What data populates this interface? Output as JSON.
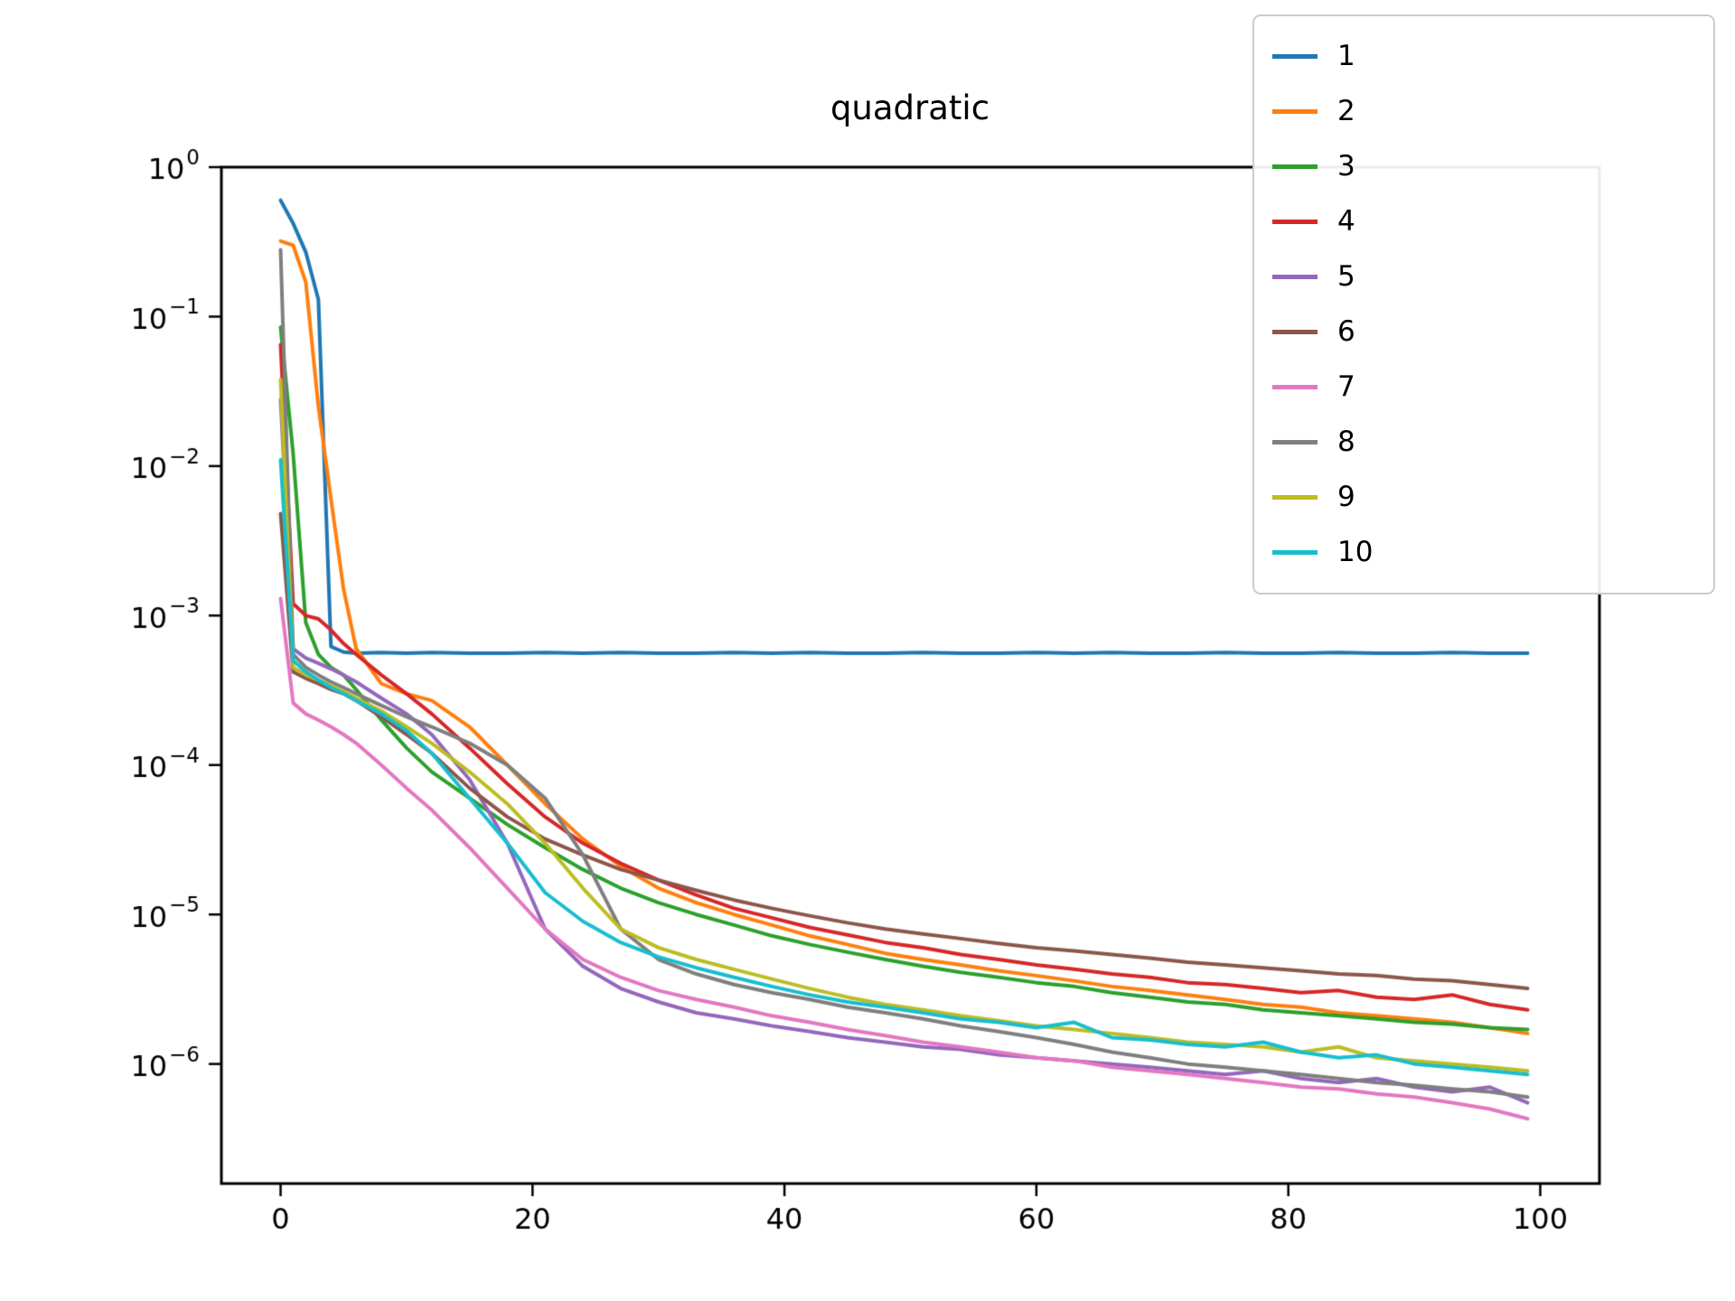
{
  "title": "quadratic",
  "legend": {
    "position": "upper right"
  },
  "chart_data": {
    "type": "line",
    "title": "quadratic",
    "xlabel": "",
    "ylabel": "",
    "yscale": "log",
    "grid": false,
    "xlim": [
      -4.7,
      104.7
    ],
    "ylim_log10": [
      -6.8,
      0
    ],
    "x_ticks": [
      0,
      20,
      40,
      60,
      80,
      100
    ],
    "y_tick_labels": [
      "10^0",
      "10^-1",
      "10^-2",
      "10^-3",
      "10^-4",
      "10^-5",
      "10^-6"
    ],
    "x": [
      0,
      1,
      2,
      3,
      4,
      5,
      6,
      8,
      10,
      12,
      15,
      18,
      21,
      24,
      27,
      30,
      33,
      36,
      39,
      42,
      45,
      48,
      51,
      54,
      57,
      60,
      63,
      66,
      69,
      72,
      75,
      78,
      81,
      84,
      87,
      90,
      93,
      96,
      99
    ],
    "series": [
      {
        "name": "1",
        "color": "#1f77b4",
        "values": [
          0.6,
          0.42,
          0.27,
          0.13,
          0.00062,
          0.00057,
          0.00056,
          0.000565,
          0.00056,
          0.000565,
          0.00056,
          0.00056,
          0.000565,
          0.00056,
          0.000565,
          0.00056,
          0.00056,
          0.000565,
          0.00056,
          0.000565,
          0.00056,
          0.00056,
          0.000565,
          0.00056,
          0.00056,
          0.000565,
          0.00056,
          0.000565,
          0.00056,
          0.00056,
          0.000565,
          0.00056,
          0.00056,
          0.000565,
          0.00056,
          0.00056,
          0.000565,
          0.00056,
          0.00056
        ]
      },
      {
        "name": "2",
        "color": "#ff7f0e",
        "values": [
          0.32,
          0.3,
          0.17,
          0.025,
          0.006,
          0.0015,
          0.0006,
          0.00035,
          0.0003,
          0.00027,
          0.00018,
          0.0001,
          5.5e-05,
          3.2e-05,
          2.1e-05,
          1.5e-05,
          1.2e-05,
          1e-05,
          8.5e-06,
          7.2e-06,
          6.3e-06,
          5.5e-06,
          5e-06,
          4.6e-06,
          4.2e-06,
          3.9e-06,
          3.6e-06,
          3.3e-06,
          3.1e-06,
          2.9e-06,
          2.7e-06,
          2.5e-06,
          2.4e-06,
          2.2e-06,
          2.1e-06,
          2e-06,
          1.9e-06,
          1.75e-06,
          1.6e-06
        ]
      },
      {
        "name": "3",
        "color": "#2ca02c",
        "values": [
          0.085,
          0.012,
          0.0009,
          0.00055,
          0.00045,
          0.0004,
          0.00032,
          0.0002,
          0.00013,
          9e-05,
          6e-05,
          4e-05,
          2.8e-05,
          2e-05,
          1.5e-05,
          1.2e-05,
          1e-05,
          8.5e-06,
          7.2e-06,
          6.3e-06,
          5.6e-06,
          5e-06,
          4.5e-06,
          4.1e-06,
          3.8e-06,
          3.5e-06,
          3.3e-06,
          3e-06,
          2.8e-06,
          2.6e-06,
          2.5e-06,
          2.3e-06,
          2.2e-06,
          2.1e-06,
          2e-06,
          1.9e-06,
          1.85e-06,
          1.75e-06,
          1.7e-06
        ]
      },
      {
        "name": "4",
        "color": "#d62728",
        "values": [
          0.065,
          0.0012,
          0.001,
          0.00095,
          0.0008,
          0.00065,
          0.00055,
          0.0004,
          0.0003,
          0.00022,
          0.00013,
          7.5e-05,
          4.5e-05,
          3e-05,
          2.2e-05,
          1.7e-05,
          1.35e-05,
          1.1e-05,
          9.5e-06,
          8.2e-06,
          7.3e-06,
          6.5e-06,
          6e-06,
          5.4e-06,
          5e-06,
          4.6e-06,
          4.3e-06,
          4e-06,
          3.8e-06,
          3.5e-06,
          3.4e-06,
          3.2e-06,
          3e-06,
          3.1e-06,
          2.8e-06,
          2.7e-06,
          2.9e-06,
          2.5e-06,
          2.3e-06
        ]
      },
      {
        "name": "5",
        "color": "#9467bd",
        "values": [
          0.028,
          0.0006,
          0.00052,
          0.00048,
          0.00044,
          0.0004,
          0.00036,
          0.00028,
          0.00022,
          0.00016,
          8e-05,
          3e-05,
          8e-06,
          4.5e-06,
          3.2e-06,
          2.6e-06,
          2.2e-06,
          2e-06,
          1.8e-06,
          1.65e-06,
          1.5e-06,
          1.4e-06,
          1.3e-06,
          1.25e-06,
          1.15e-06,
          1.1e-06,
          1.05e-06,
          1e-06,
          9.5e-07,
          9e-07,
          8.5e-07,
          9e-07,
          8e-07,
          7.5e-07,
          8e-07,
          7e-07,
          6.5e-07,
          7e-07,
          5.5e-07
        ]
      },
      {
        "name": "6",
        "color": "#8c564b",
        "values": [
          0.0048,
          0.00042,
          0.00038,
          0.00035,
          0.00032,
          0.0003,
          0.00027,
          0.00021,
          0.00016,
          0.00012,
          7e-05,
          4.5e-05,
          3.2e-05,
          2.5e-05,
          2e-05,
          1.7e-05,
          1.45e-05,
          1.25e-05,
          1.1e-05,
          9.8e-06,
          8.8e-06,
          8e-06,
          7.4e-06,
          6.9e-06,
          6.4e-06,
          6e-06,
          5.7e-06,
          5.4e-06,
          5.1e-06,
          4.8e-06,
          4.6e-06,
          4.4e-06,
          4.2e-06,
          4e-06,
          3.9e-06,
          3.7e-06,
          3.6e-06,
          3.4e-06,
          3.2e-06
        ]
      },
      {
        "name": "7",
        "color": "#e377c2",
        "values": [
          0.0013,
          0.00026,
          0.00022,
          0.0002,
          0.00018,
          0.00016,
          0.00014,
          0.0001,
          7e-05,
          5e-05,
          2.8e-05,
          1.5e-05,
          8e-06,
          5e-06,
          3.8e-06,
          3.1e-06,
          2.7e-06,
          2.4e-06,
          2.1e-06,
          1.9e-06,
          1.7e-06,
          1.55e-06,
          1.4e-06,
          1.3e-06,
          1.2e-06,
          1.1e-06,
          1.05e-06,
          9.5e-07,
          9e-07,
          8.5e-07,
          8e-07,
          7.5e-07,
          7e-07,
          6.8e-07,
          6.3e-07,
          6e-07,
          5.5e-07,
          5e-07,
          4.3e-07
        ]
      },
      {
        "name": "8",
        "color": "#7f7f7f",
        "values": [
          0.28,
          0.00055,
          0.00045,
          0.0004,
          0.00036,
          0.00033,
          0.0003,
          0.00025,
          0.00021,
          0.00018,
          0.00014,
          0.0001,
          6e-05,
          2.5e-05,
          8e-06,
          5e-06,
          4e-06,
          3.4e-06,
          3e-06,
          2.7e-06,
          2.4e-06,
          2.2e-06,
          2e-06,
          1.8e-06,
          1.65e-06,
          1.5e-06,
          1.35e-06,
          1.2e-06,
          1.1e-06,
          1e-06,
          9.5e-07,
          9e-07,
          8.5e-07,
          8e-07,
          7.5e-07,
          7.2e-07,
          6.8e-07,
          6.5e-07,
          6e-07
        ]
      },
      {
        "name": "9",
        "color": "#bcbd22",
        "values": [
          0.038,
          0.00045,
          0.0004,
          0.00037,
          0.00034,
          0.00031,
          0.00028,
          0.00023,
          0.00018,
          0.00014,
          9e-05,
          5.5e-05,
          3e-05,
          1.5e-05,
          8e-06,
          6e-06,
          5e-06,
          4.3e-06,
          3.7e-06,
          3.2e-06,
          2.8e-06,
          2.5e-06,
          2.3e-06,
          2.1e-06,
          1.95e-06,
          1.8e-06,
          1.7e-06,
          1.6e-06,
          1.5e-06,
          1.4e-06,
          1.35e-06,
          1.3e-06,
          1.2e-06,
          1.3e-06,
          1.1e-06,
          1.05e-06,
          1e-06,
          9.5e-07,
          9e-07
        ]
      },
      {
        "name": "10",
        "color": "#17becf",
        "values": [
          0.011,
          0.0005,
          0.00042,
          0.00037,
          0.00033,
          0.0003,
          0.00027,
          0.00022,
          0.00017,
          0.00012,
          6e-05,
          3e-05,
          1.4e-05,
          9e-06,
          6.5e-06,
          5.2e-06,
          4.4e-06,
          3.8e-06,
          3.3e-06,
          2.9e-06,
          2.6e-06,
          2.4e-06,
          2.2e-06,
          2e-06,
          1.9e-06,
          1.75e-06,
          1.9e-06,
          1.5e-06,
          1.45e-06,
          1.35e-06,
          1.3e-06,
          1.4e-06,
          1.2e-06,
          1.1e-06,
          1.15e-06,
          1e-06,
          9.5e-07,
          9e-07,
          8.5e-07
        ]
      }
    ]
  }
}
